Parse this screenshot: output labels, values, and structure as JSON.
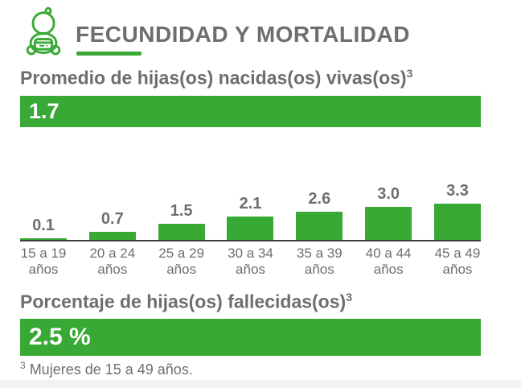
{
  "colors": {
    "green": "#39a935",
    "gray_text": "#6d6e71",
    "axis": "#414042",
    "white": "#ffffff",
    "bottom_strip": "#f1f2f4"
  },
  "header": {
    "title": "FECUNDIDAD Y MORTALIDAD",
    "icon": "baby-icon"
  },
  "fertility_section": {
    "heading": "Promedio de hijas(os) nacidas(os) vivas(os)",
    "heading_sup": "3",
    "value": "1.7"
  },
  "chart_data": {
    "type": "bar",
    "categories": [
      "15 a 19 años",
      "20 a 24 años",
      "25 a 29 años",
      "30 a 34 años",
      "35 a 39 años",
      "40 a 44 años",
      "45 a 49 años"
    ],
    "category_line1": [
      "15 a 19",
      "20 a 24",
      "25 a 29",
      "30 a 34",
      "35 a 39",
      "40 a 44",
      "45 a 49"
    ],
    "category_line2": "años",
    "values": [
      0.1,
      0.7,
      1.5,
      2.1,
      2.6,
      3.0,
      3.3
    ],
    "value_labels": [
      "0.1",
      "0.7",
      "1.5",
      "2.1",
      "2.6",
      "3.0",
      "3.3"
    ],
    "title": "",
    "xlabel": "",
    "ylabel": "",
    "ylim": [
      0,
      3.5
    ],
    "grid": false,
    "legend": "none",
    "bar_color": "#39a935",
    "data_labels": "above-bars"
  },
  "mortality_section": {
    "heading": "Porcentaje de hijas(os) fallecidas(os)",
    "heading_sup": "3",
    "value": "2.5 %"
  },
  "footnote": {
    "sup": "3",
    "text": " Mujeres de 15 a 49 años."
  }
}
